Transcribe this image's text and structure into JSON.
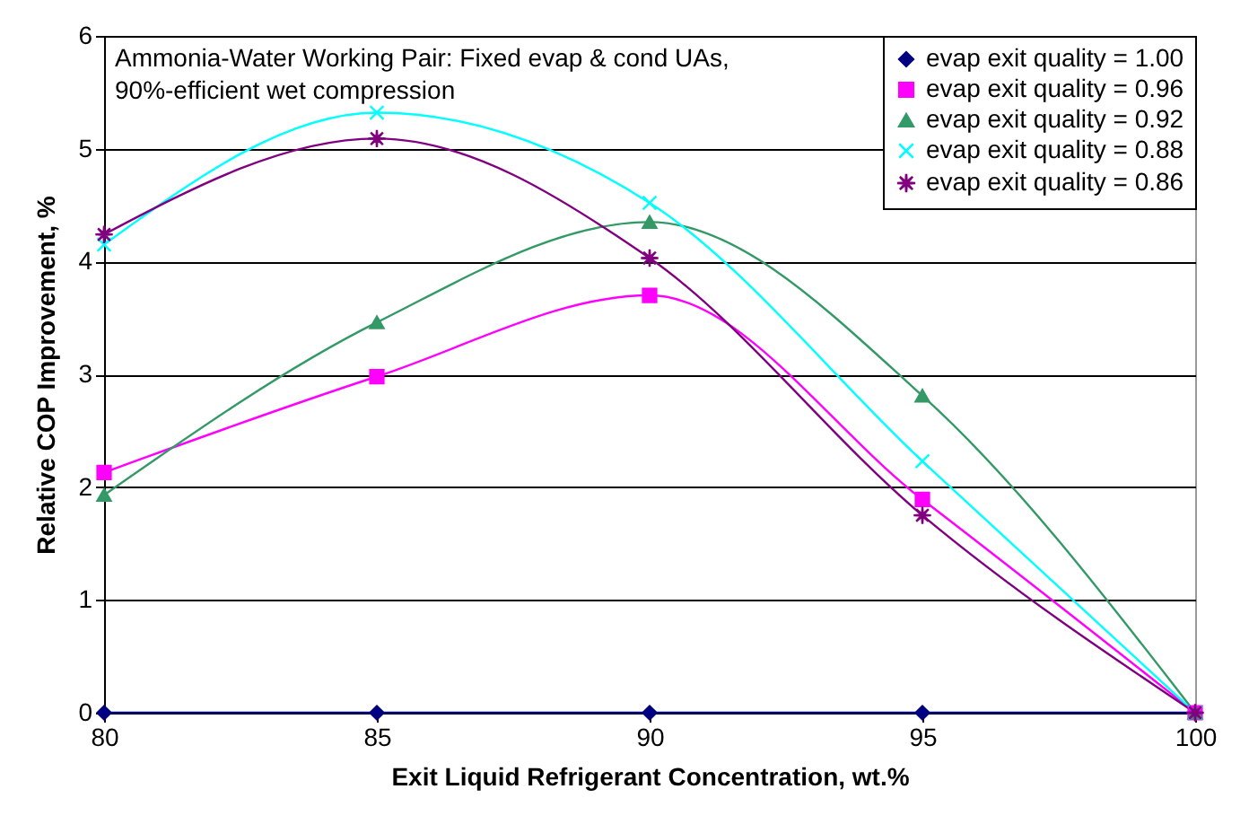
{
  "chart_data": {
    "type": "line",
    "xlabel": "Exit Liquid Refrigerant Concentration, wt.%",
    "ylabel": "Relative COP Improvement, %",
    "annotations": [
      "Ammonia-Water Working Pair: Fixed evap & cond UAs,",
      "90%-efficient wet compression"
    ],
    "x": [
      80,
      85,
      90,
      95,
      100
    ],
    "series": [
      {
        "name": "evap exit quality = 1.00",
        "color": "#000080",
        "marker": "diamond",
        "values": [
          0,
          0,
          0,
          0,
          0
        ]
      },
      {
        "name": "evap exit quality = 0.96",
        "color": "#ff00ff",
        "marker": "square",
        "values": [
          2.13,
          2.98,
          3.7,
          1.89,
          0
        ]
      },
      {
        "name": "evap exit quality = 0.92",
        "color": "#339966",
        "marker": "triangle",
        "values": [
          1.93,
          3.46,
          4.35,
          2.81,
          0
        ]
      },
      {
        "name": "evap exit quality = 0.88",
        "color": "#00ffff",
        "marker": "cross",
        "values": [
          4.15,
          5.32,
          4.52,
          2.23,
          0
        ]
      },
      {
        "name": "evap exit quality = 0.86",
        "color": "#800080",
        "marker": "star",
        "values": [
          4.24,
          5.09,
          4.03,
          1.75,
          0
        ]
      }
    ],
    "xlim": [
      80,
      100
    ],
    "xticks": [
      80,
      85,
      90,
      95,
      100
    ],
    "ylim": [
      0,
      6
    ],
    "yticks": [
      0,
      1,
      2,
      3,
      4,
      5,
      6
    ],
    "grid": "y",
    "legend": "top right",
    "line_style": "solid"
  }
}
